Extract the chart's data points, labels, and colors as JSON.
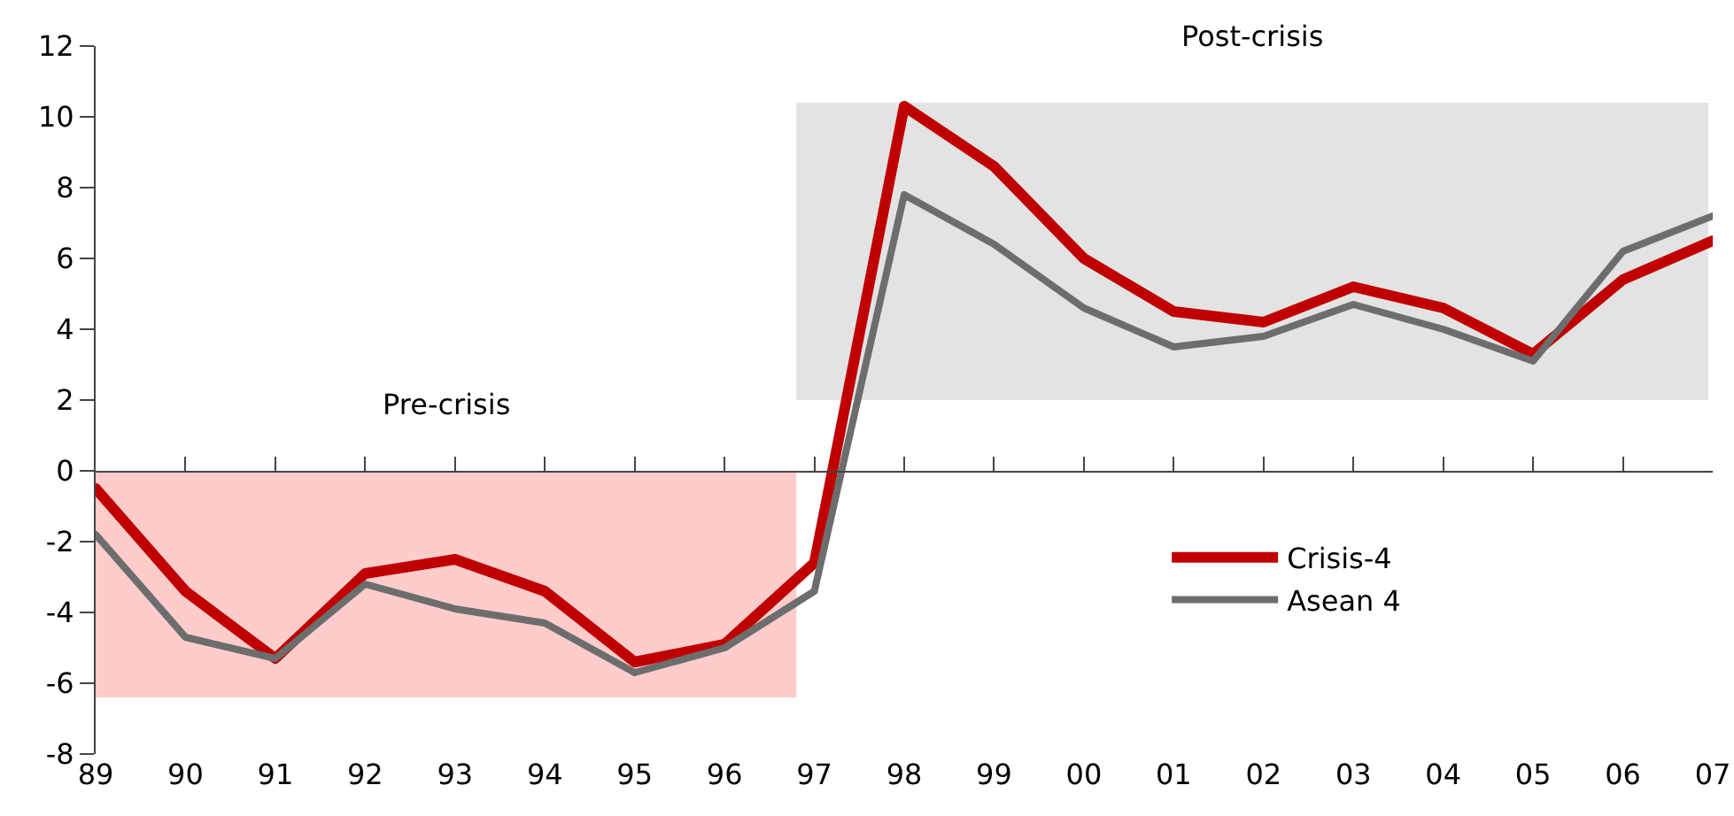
{
  "chart_data": {
    "type": "line",
    "x": [
      1989,
      1990,
      1991,
      1992,
      1993,
      1994,
      1995,
      1996,
      1997,
      1998,
      1999,
      2000,
      2001,
      2002,
      2003,
      2004,
      2005,
      2006,
      2007
    ],
    "series": [
      {
        "name": "Crisis-4",
        "color": "#c00000",
        "values": [
          -0.5,
          -3.4,
          -5.3,
          -2.9,
          -2.5,
          -3.4,
          -5.4,
          -4.9,
          -2.6,
          10.3,
          8.6,
          6.0,
          4.5,
          4.2,
          5.2,
          4.6,
          3.3,
          5.4,
          6.5
        ]
      },
      {
        "name": "Asean 4",
        "color": "#6d6d6d",
        "values": [
          -1.8,
          -4.7,
          -5.3,
          -3.2,
          -3.9,
          -4.3,
          -5.7,
          -5.0,
          -3.4,
          7.8,
          6.4,
          4.6,
          3.5,
          3.8,
          4.7,
          4.0,
          3.1,
          6.2,
          7.2
        ]
      },
      {
        "type": "area",
        "color": "#ffcccc",
        "x": [
          1989,
          1996.8
        ],
        "values": [
          -6.4,
          -6.4
        ]
      },
      {
        "type": "area",
        "color": "#e3e3e3",
        "x": [
          1996.8,
          2006.95
        ],
        "values": [
          null,
          null
        ],
        "lower": [
          2,
          2
        ],
        "upper": [
          10.4,
          10.4
        ]
      }
    ],
    "annotations": [
      "Pre-crisis",
      "Post-crisis"
    ],
    "xlim": [
      1989,
      2007
    ],
    "xticks": [
      {
        "value": 1989,
        "label": "89"
      },
      {
        "value": 1990,
        "label": "90"
      },
      {
        "value": 1991,
        "label": "91"
      },
      {
        "value": 1992,
        "label": "92"
      },
      {
        "value": 1993,
        "label": "93"
      },
      {
        "value": 1994,
        "label": "94"
      },
      {
        "value": 1995,
        "label": "95"
      },
      {
        "value": 1996,
        "label": "96"
      },
      {
        "value": 1997,
        "label": "97"
      },
      {
        "value": 1998,
        "label": "98"
      },
      {
        "value": 1999,
        "label": "99"
      },
      {
        "value": 2000,
        "label": "00"
      },
      {
        "value": 2001,
        "label": "01"
      },
      {
        "value": 2002,
        "label": "02"
      },
      {
        "value": 2003,
        "label": "03"
      },
      {
        "value": 2004,
        "label": "04"
      },
      {
        "value": 2005,
        "label": "05"
      },
      {
        "value": 2006,
        "label": "06"
      },
      {
        "value": 2007,
        "label": "07"
      }
    ],
    "ylim": [
      -8,
      12
    ],
    "yticks": [
      -8,
      -6,
      -4,
      -2,
      0,
      2,
      4,
      6,
      8,
      10,
      12
    ],
    "legend": "bottom right",
    "marker": "none",
    "line_style": "solid"
  }
}
